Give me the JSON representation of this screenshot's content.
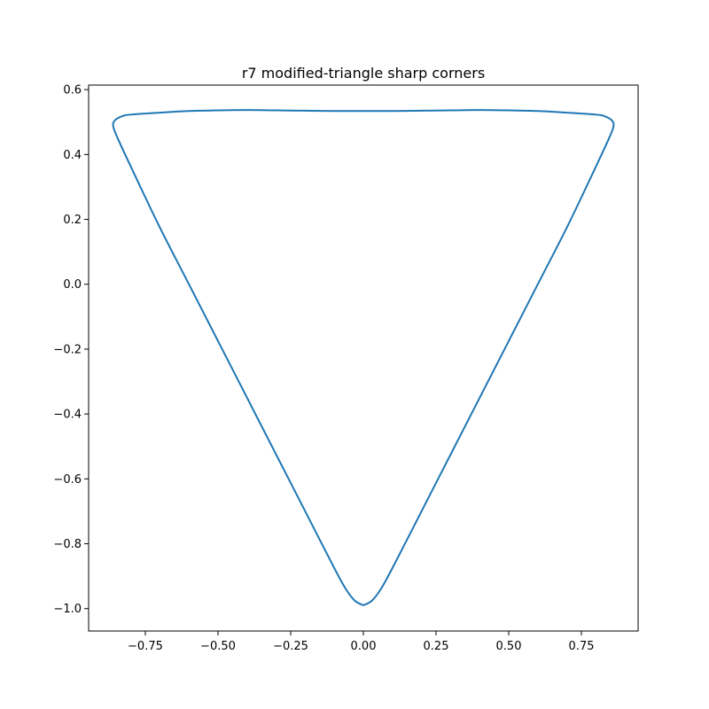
{
  "chart_data": {
    "type": "line",
    "title": "r7 modified-triangle sharp corners",
    "xlabel": "",
    "ylabel": "",
    "xlim": [
      -0.945,
      0.945
    ],
    "ylim": [
      -1.069,
      0.614
    ],
    "xticks": [
      -0.75,
      -0.5,
      -0.25,
      0.0,
      0.25,
      0.5,
      0.75
    ],
    "xtick_labels": [
      "−0.75",
      "−0.50",
      "−0.25",
      "0.00",
      "0.25",
      "0.50",
      "0.75"
    ],
    "yticks": [
      0.6,
      0.4,
      0.2,
      0.0,
      -0.2,
      -0.4,
      -0.6,
      -0.8,
      -1.0
    ],
    "ytick_labels": [
      "0.6",
      "0.4",
      "0.2",
      "0.0",
      "−0.2",
      "−0.4",
      "−0.6",
      "−0.8",
      "−1.0"
    ],
    "grid": false,
    "series": [
      {
        "color": "#1f77b4",
        "x": [
          0.0,
          0.03,
          0.06,
          0.1,
          0.2,
          0.3,
          0.4,
          0.5,
          0.6,
          0.7,
          0.78,
          0.84,
          0.86,
          0.855,
          0.83,
          0.8,
          0.7,
          0.6,
          0.5,
          0.4,
          0.3,
          0.2,
          0.1,
          0.0,
          -0.1,
          -0.2,
          -0.3,
          -0.4,
          -0.5,
          -0.6,
          -0.7,
          -0.8,
          -0.83,
          -0.855,
          -0.86,
          -0.84,
          -0.78,
          -0.7,
          -0.6,
          -0.5,
          -0.4,
          -0.3,
          -0.2,
          -0.1,
          -0.06,
          -0.03,
          0.0
        ],
        "y": [
          -0.99,
          -0.975,
          -0.94,
          -0.875,
          -0.7,
          -0.525,
          -0.35,
          -0.175,
          0.0,
          0.175,
          0.325,
          0.44,
          0.485,
          0.505,
          0.518,
          0.523,
          0.529,
          0.534,
          0.536,
          0.537,
          0.536,
          0.535,
          0.534,
          0.534,
          0.534,
          0.535,
          0.536,
          0.537,
          0.536,
          0.534,
          0.529,
          0.523,
          0.518,
          0.505,
          0.485,
          0.44,
          0.325,
          0.175,
          0.0,
          -0.175,
          -0.35,
          -0.525,
          -0.7,
          -0.875,
          -0.94,
          -0.975,
          -0.99
        ]
      }
    ]
  }
}
